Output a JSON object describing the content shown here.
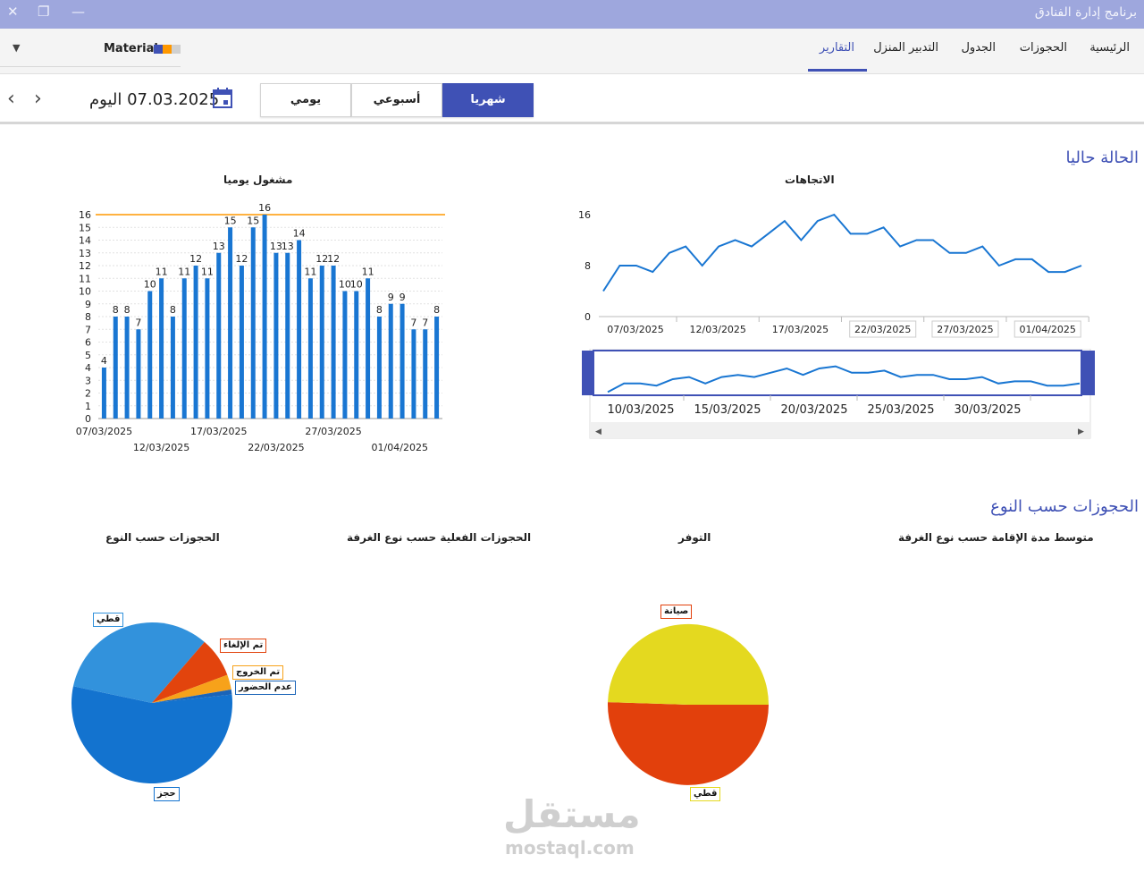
{
  "window": {
    "title": "برنامج إدارة الفنادق",
    "close_glyph": "✕",
    "restore_glyph": "❐",
    "minimize_glyph": "—"
  },
  "ribbon": {
    "tabs": [
      {
        "label": "الرئيسية"
      },
      {
        "label": "الحجوزات"
      },
      {
        "label": "الجدول"
      },
      {
        "label": "التدبير المنزل"
      },
      {
        "label": "التقارير"
      }
    ],
    "active_tab": "التقارير",
    "theme": {
      "label": "Material",
      "swatch_colors": [
        "#3f51b5",
        "#ff9800",
        "#d0d0d0"
      ]
    }
  },
  "toolbar": {
    "prev_glyph": "‹",
    "next_glyph": "›",
    "today_label": "07.03.2025 اليوم",
    "periods": [
      {
        "label": "يومي"
      },
      {
        "label": "أسبوعي"
      },
      {
        "label": "شهريا"
      }
    ],
    "selected_period": "شهريا"
  },
  "sections": {
    "current_status": "الحالة حاليا",
    "bookings_by_type": "الحجوزات حسب النوع"
  },
  "colors": {
    "accent": "#3f51b5",
    "bar": "#1976d2",
    "threshold": "#ff9800"
  },
  "chart_data": [
    {
      "id": "daily-occupied",
      "type": "bar",
      "title": "مشغول يوميا",
      "ylim": [
        0,
        16
      ],
      "yticks": [
        0,
        1,
        2,
        3,
        4,
        5,
        6,
        7,
        8,
        9,
        10,
        11,
        12,
        13,
        14,
        15,
        16
      ],
      "threshold": 16,
      "values": [
        4,
        8,
        8,
        7,
        10,
        11,
        8,
        11,
        12,
        11,
        13,
        15,
        12,
        15,
        16,
        13,
        13,
        14,
        11,
        12,
        12,
        10,
        10,
        11,
        8,
        9,
        9,
        7,
        7,
        8
      ],
      "xtick_labels_row1": [
        "07/03/2025",
        "17/03/2025",
        "27/03/2025"
      ],
      "xtick_labels_row2": [
        "12/03/2025",
        "22/03/2025",
        "01/04/2025"
      ]
    },
    {
      "id": "trends",
      "type": "line",
      "title": "الاتجاهات",
      "ylim": [
        0,
        16
      ],
      "yticks": [
        0,
        8,
        16
      ],
      "values": [
        4,
        8,
        8,
        7,
        10,
        11,
        8,
        11,
        12,
        11,
        13,
        15,
        12,
        15,
        16,
        13,
        13,
        14,
        11,
        12,
        12,
        10,
        10,
        11,
        8,
        9,
        9,
        7,
        7,
        8
      ],
      "xtick_labels": [
        "07/03/2025",
        "12/03/2025",
        "17/03/2025",
        "22/03/2025",
        "27/03/2025",
        "01/04/2025"
      ],
      "navigator_labels": [
        "10/03/2025",
        "15/03/2025",
        "20/03/2025",
        "25/03/2025",
        "30/03/2025"
      ]
    },
    {
      "id": "bookings-by-type",
      "type": "pie",
      "title": "الحجوزات حسب النوع",
      "slices": [
        {
          "name": "حجز",
          "value": 55,
          "color": "#1373cf"
        },
        {
          "name": "قطي",
          "value": 33,
          "color": "#3292dc"
        },
        {
          "name": "تم الإلغاء",
          "value": 8,
          "color": "#e2440d"
        },
        {
          "name": "تم الخروج",
          "value": 3,
          "color": "#f7a21a"
        },
        {
          "name": "عدم الحضور",
          "value": 1,
          "color": "#1a64b8"
        }
      ]
    },
    {
      "id": "actual-bookings-room-type",
      "type": "pie",
      "title": "الحجوزات الفعلية حسب نوع الغرفة",
      "slices": []
    },
    {
      "id": "availability",
      "type": "pie",
      "title": "التوفر",
      "slices": [
        {
          "name": "صيانة",
          "value": 50.5,
          "color": "#e2400c"
        },
        {
          "name": "قطي",
          "value": 49.5,
          "color": "#e4d91f"
        }
      ]
    },
    {
      "id": "avg-stay-room-type",
      "type": "pie",
      "title": "متوسط مدة الإقامة حسب نوع الغرفة",
      "slices": []
    }
  ],
  "watermark": {
    "arabic": "مستقل",
    "latin": "mostaql.com"
  }
}
